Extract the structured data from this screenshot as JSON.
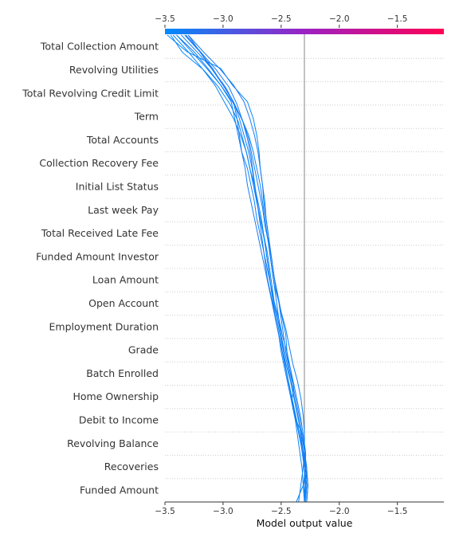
{
  "chart_data": {
    "type": "line",
    "orientation": "decision-plot",
    "xlabel": "Model output value",
    "xlim": [
      -3.5,
      -1.1
    ],
    "x_ticks": [
      -3.5,
      -3.0,
      -2.5,
      -2.0,
      -1.5
    ],
    "x_tick_labels": [
      "−3.5",
      "−3.0",
      "−2.5",
      "−2.0",
      "−1.5"
    ],
    "base_value": -2.3,
    "colorbar": {
      "from": "#008bfb",
      "mid": "#9b22c4",
      "to": "#ff0052",
      "range": [
        -3.5,
        -1.1
      ]
    },
    "features": [
      "Total Collection Amount",
      "Revolving Utilities",
      "Total Revolving Credit Limit",
      "Term",
      "Total Accounts",
      "Collection Recovery Fee",
      "Initial List Status",
      "Last week Pay",
      "Total Received Late Fee",
      "Funded Amount Investor",
      "Loan Amount",
      "Open Account",
      "Employment Duration",
      "Grade",
      "Batch Enrolled",
      "Home Ownership",
      "Debit to Income",
      "Revolving Balance",
      "Recoveries",
      "Funded Amount"
    ],
    "series": [
      {
        "values": [
          -2.37,
          -2.31,
          -2.29,
          -2.29,
          -2.31,
          -2.38,
          -2.41,
          -2.39,
          -2.43,
          -2.45,
          -2.46,
          -2.49,
          -2.52,
          -2.56,
          -2.58,
          -2.6,
          -2.61,
          -2.63,
          -2.64,
          -2.66,
          -2.68,
          -2.69,
          -2.71,
          -2.74,
          -2.79,
          -2.92,
          -3.02,
          -3.31,
          -3.48
        ]
      },
      {
        "values": [
          -2.35,
          -2.33,
          -2.31,
          -2.3,
          -2.3,
          -2.31,
          -2.33,
          -2.36,
          -2.4,
          -2.43,
          -2.46,
          -2.5,
          -2.53,
          -2.56,
          -2.58,
          -2.61,
          -2.64,
          -2.66,
          -2.69,
          -2.72,
          -2.75,
          -2.78,
          -2.83,
          -2.9,
          -2.98,
          -3.09,
          -3.22,
          -3.36
        ]
      },
      {
        "values": [
          -2.3,
          -2.3,
          -2.29,
          -2.3,
          -2.31,
          -2.33,
          -2.36,
          -2.39,
          -2.42,
          -2.45,
          -2.49,
          -2.52,
          -2.56,
          -2.59,
          -2.62,
          -2.65,
          -2.68,
          -2.71,
          -2.73,
          -2.76,
          -2.79,
          -2.84,
          -2.87,
          -2.9,
          -2.93,
          -3.02,
          -3.13,
          -3.25,
          -3.4
        ]
      },
      {
        "values": [
          -2.3,
          -2.29,
          -2.3,
          -2.31,
          -2.33,
          -2.35,
          -2.38,
          -2.41,
          -2.44,
          -2.47,
          -2.5,
          -2.53,
          -2.56,
          -2.58,
          -2.6,
          -2.62,
          -2.65,
          -2.68,
          -2.71,
          -2.73,
          -2.75,
          -2.78,
          -2.82,
          -2.86,
          -2.91,
          -3.0,
          -3.09,
          -3.2,
          -3.33
        ]
      },
      {
        "values": [
          -2.3,
          -2.31,
          -2.32,
          -2.34,
          -2.36,
          -2.38,
          -2.41,
          -2.44,
          -2.47,
          -2.5,
          -2.52,
          -2.55,
          -2.57,
          -2.59,
          -2.61,
          -2.63,
          -2.65,
          -2.67,
          -2.7,
          -2.73,
          -2.77,
          -2.8,
          -2.85,
          -2.91,
          -2.99,
          -3.07,
          -3.18,
          -3.3,
          -3.43
        ]
      },
      {
        "values": [
          -2.3,
          -2.28,
          -2.3,
          -2.32,
          -2.34,
          -2.37,
          -2.4,
          -2.43,
          -2.46,
          -2.49,
          -2.52,
          -2.55,
          -2.58,
          -2.61,
          -2.64,
          -2.67,
          -2.7,
          -2.73,
          -2.76,
          -2.79,
          -2.81,
          -2.84,
          -2.86,
          -2.88,
          -2.91,
          -3.0,
          -3.1,
          -3.2,
          -3.3
        ]
      },
      {
        "values": [
          -2.3,
          -2.29,
          -2.28,
          -2.3,
          -2.33,
          -2.36,
          -2.39,
          -2.42,
          -2.46,
          -2.49,
          -2.52,
          -2.55,
          -2.58,
          -2.6,
          -2.62,
          -2.64,
          -2.67,
          -2.7,
          -2.73,
          -2.76,
          -2.79,
          -2.83,
          -2.87,
          -2.94,
          -3.04,
          -3.17,
          -3.35,
          -3.45
        ]
      },
      {
        "values": [
          -2.29,
          -2.28,
          -2.3,
          -2.32,
          -2.35,
          -2.38,
          -2.41,
          -2.44,
          -2.47,
          -2.5,
          -2.53,
          -2.56,
          -2.59,
          -2.62,
          -2.64,
          -2.66,
          -2.68,
          -2.7,
          -2.72,
          -2.74,
          -2.76,
          -2.79,
          -2.83,
          -2.88,
          -2.95,
          -3.06,
          -3.19,
          -3.32
        ]
      },
      {
        "values": [
          -2.28,
          -2.27,
          -2.28,
          -2.3,
          -2.32,
          -2.34,
          -2.37,
          -2.4,
          -2.43,
          -2.46,
          -2.48,
          -2.5,
          -2.52,
          -2.55,
          -2.57,
          -2.59,
          -2.61,
          -2.63,
          -2.65,
          -2.66,
          -2.68,
          -2.7,
          -2.73,
          -2.77,
          -2.82,
          -2.91,
          -3.03,
          -3.17,
          -3.3
        ]
      },
      {
        "values": [
          -2.28,
          -2.27,
          -2.29,
          -2.31,
          -2.34,
          -2.37,
          -2.4,
          -2.43,
          -2.46,
          -2.48,
          -2.5,
          -2.52,
          -2.54,
          -2.56,
          -2.58,
          -2.6,
          -2.62,
          -2.64,
          -2.66,
          -2.68,
          -2.71,
          -2.74,
          -2.78,
          -2.84,
          -2.92,
          -3.02,
          -3.14,
          -3.27,
          -3.4
        ]
      }
    ]
  }
}
